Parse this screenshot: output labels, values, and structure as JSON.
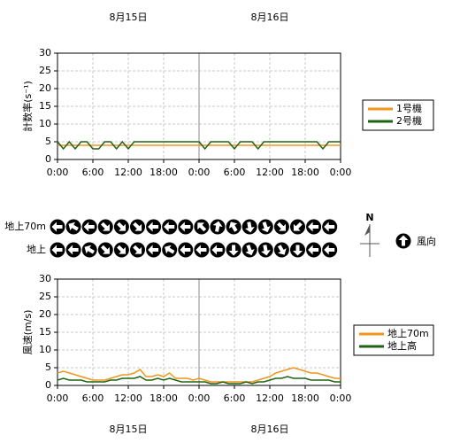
{
  "chart_data": [
    {
      "type": "line",
      "y_label": "計数率(s⁻¹)",
      "x": [
        0,
        1,
        2,
        3,
        4,
        5,
        6,
        7,
        8,
        9,
        10,
        11,
        12,
        13,
        14,
        15,
        16,
        17,
        18,
        19,
        20,
        21,
        22,
        23,
        24,
        25,
        26,
        27,
        28,
        29,
        30,
        31,
        32,
        33,
        34,
        35,
        36,
        37,
        38,
        39,
        40,
        41,
        42,
        43,
        44,
        45,
        46,
        47,
        48
      ],
      "series": [
        {
          "name": "1号機",
          "color": "#f0961e",
          "values": [
            4,
            4,
            4,
            4,
            4,
            4,
            4,
            4,
            4,
            4,
            4,
            4,
            4,
            4,
            4,
            4,
            4,
            4,
            4,
            4,
            4,
            4,
            4,
            4,
            4,
            4,
            4,
            4,
            4,
            4,
            4,
            4,
            4,
            4,
            4,
            4,
            4,
            4,
            4,
            4,
            4,
            4,
            4,
            4,
            4,
            4,
            4,
            4,
            4
          ]
        },
        {
          "name": "2号機",
          "color": "#1e6414",
          "values": [
            5,
            3,
            5,
            3,
            5,
            5,
            3,
            3,
            5,
            5,
            3,
            5,
            3,
            5,
            5,
            5,
            5,
            5,
            5,
            5,
            5,
            5,
            5,
            5,
            5,
            3,
            5,
            5,
            5,
            5,
            3,
            5,
            5,
            5,
            3,
            5,
            5,
            5,
            5,
            5,
            5,
            5,
            5,
            5,
            5,
            3,
            5,
            5,
            5
          ]
        }
      ],
      "xlim": [
        0,
        48
      ],
      "xticks": [
        {
          "value": 0,
          "label": "0:00"
        },
        {
          "value": 6,
          "label": "6:00"
        },
        {
          "value": 12,
          "label": "12:00"
        },
        {
          "value": 18,
          "label": "18:00"
        },
        {
          "value": 24,
          "label": "0:00"
        },
        {
          "value": 30,
          "label": "6:00"
        },
        {
          "value": 36,
          "label": "12:00"
        },
        {
          "value": 42,
          "label": "18:00"
        },
        {
          "value": 48,
          "label": "0:00"
        }
      ],
      "ylim": [
        0,
        30
      ],
      "yticks": [
        0,
        5,
        10,
        15,
        20,
        25,
        30
      ],
      "grid": true,
      "date_labels": [
        {
          "value": 12,
          "label": "8月15日"
        },
        {
          "value": 36,
          "label": "8月16日"
        }
      ],
      "date_position": "top"
    },
    {
      "type": "wind_direction",
      "compass_label": "N",
      "legend_label": "風向",
      "rows": [
        {
          "name": "地上70m",
          "values": [
            270,
            300,
            270,
            135,
            135,
            135,
            270,
            270,
            270,
            315,
            10,
            330,
            170,
            160,
            135,
            225,
            270,
            270
          ]
        },
        {
          "name": "地上",
          "values": [
            270,
            270,
            300,
            135,
            135,
            135,
            270,
            300,
            270,
            270,
            270,
            180,
            160,
            170,
            150,
            180,
            270,
            270
          ]
        }
      ]
    },
    {
      "type": "line",
      "y_label": "風速(m/s)",
      "x": [
        0,
        1,
        2,
        3,
        4,
        5,
        6,
        7,
        8,
        9,
        10,
        11,
        12,
        13,
        14,
        15,
        16,
        17,
        18,
        19,
        20,
        21,
        22,
        23,
        24,
        25,
        26,
        27,
        28,
        29,
        30,
        31,
        32,
        33,
        34,
        35,
        36,
        37,
        38,
        39,
        40,
        41,
        42,
        43,
        44,
        45,
        46,
        47,
        48
      ],
      "series": [
        {
          "name": "地上70m",
          "color": "#f0961e",
          "values": [
            3.5,
            4,
            3.5,
            3,
            2.5,
            2,
            1.5,
            1.5,
            1.5,
            2,
            2.5,
            3,
            3,
            3.5,
            4.5,
            2.5,
            2.5,
            3,
            2.5,
            3.5,
            2,
            2,
            2,
            1.5,
            2,
            1.5,
            1,
            1,
            1,
            1,
            1,
            1,
            1,
            1,
            1.5,
            2,
            2.5,
            3.5,
            4,
            4.5,
            5,
            4.5,
            4,
            3.5,
            3.5,
            3,
            2.5,
            2,
            2
          ]
        },
        {
          "name": "地上高",
          "color": "#1e6414",
          "values": [
            1.5,
            2,
            1.5,
            1.5,
            1.5,
            1,
            1,
            1,
            1,
            1.5,
            1.5,
            2,
            2,
            2,
            2.5,
            1.5,
            1.5,
            2,
            1.5,
            2,
            1.5,
            1,
            1,
            1,
            1,
            1,
            0.5,
            0.5,
            1,
            0.5,
            0.5,
            0.5,
            1,
            0.5,
            1,
            1,
            1.5,
            2,
            2,
            2.5,
            2,
            2,
            2,
            1.5,
            1.5,
            1.5,
            1.5,
            1,
            1
          ]
        }
      ],
      "xlim": [
        0,
        48
      ],
      "xticks": [
        {
          "value": 0,
          "label": "0:00"
        },
        {
          "value": 6,
          "label": "6:00"
        },
        {
          "value": 12,
          "label": "12:00"
        },
        {
          "value": 18,
          "label": "18:00"
        },
        {
          "value": 24,
          "label": "0:00"
        },
        {
          "value": 30,
          "label": "6:00"
        },
        {
          "value": 36,
          "label": "12:00"
        },
        {
          "value": 42,
          "label": "18:00"
        },
        {
          "value": 48,
          "label": "0:00"
        }
      ],
      "ylim": [
        0,
        30
      ],
      "yticks": [
        0,
        5,
        10,
        15,
        20,
        25,
        30
      ],
      "grid": true,
      "date_labels": [
        {
          "value": 12,
          "label": "8月15日"
        },
        {
          "value": 36,
          "label": "8月16日"
        }
      ],
      "date_position": "bottom"
    }
  ]
}
